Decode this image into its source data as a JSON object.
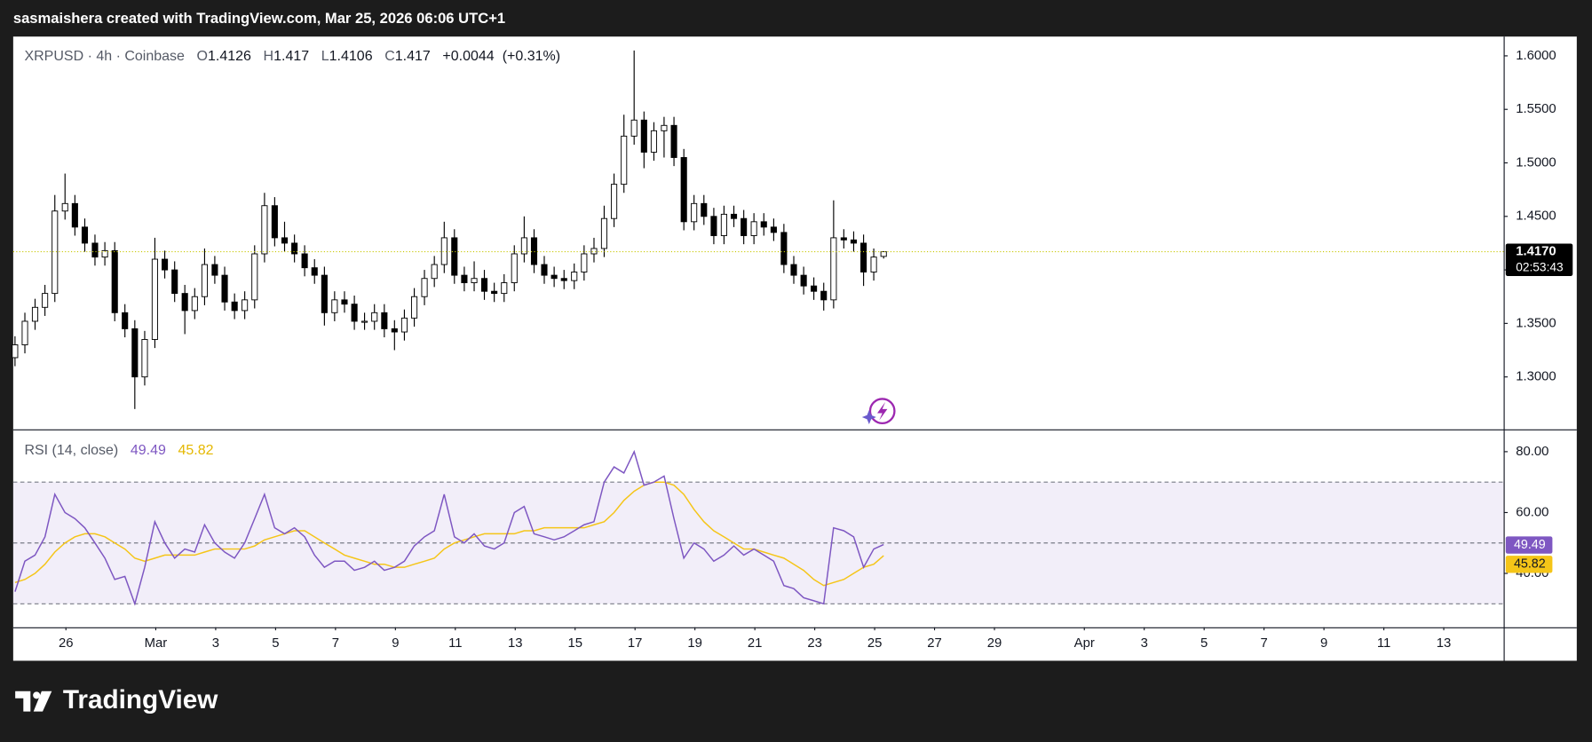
{
  "header": {
    "text": "sasmaishera created with TradingView.com, Mar 25, 2026 06:06 UTC+1"
  },
  "chart_data": {
    "type": "candlestick",
    "symbol": "XRPUSD · 4h · Coinbase",
    "legend": {
      "o_label": "O",
      "o": 1.4126,
      "h_label": "H",
      "h": 1.417,
      "l_label": "L",
      "l": 1.4106,
      "c_label": "C",
      "c": 1.417,
      "change": "+0.0044",
      "change_pct": "(+0.31%)"
    },
    "up_color": "#ffffff",
    "down_color": "#000000",
    "wick_color": "#000000",
    "xlim": [
      0.24,
      50
    ],
    "xticks": [
      {
        "value": 2,
        "label": "26"
      },
      {
        "value": 5,
        "label": "Mar"
      },
      {
        "value": 7,
        "label": "3"
      },
      {
        "value": 9,
        "label": "5"
      },
      {
        "value": 11,
        "label": "7"
      },
      {
        "value": 13,
        "label": "9"
      },
      {
        "value": 15,
        "label": "11"
      },
      {
        "value": 17,
        "label": "13"
      },
      {
        "value": 19,
        "label": "15"
      },
      {
        "value": 21,
        "label": "17"
      },
      {
        "value": 23,
        "label": "19"
      },
      {
        "value": 25,
        "label": "21"
      },
      {
        "value": 27,
        "label": "23"
      },
      {
        "value": 29,
        "label": "25"
      },
      {
        "value": 31,
        "label": "27"
      },
      {
        "value": 33,
        "label": "29"
      },
      {
        "value": 36,
        "label": "Apr"
      },
      {
        "value": 38,
        "label": "3"
      },
      {
        "value": 40,
        "label": "5"
      },
      {
        "value": 42,
        "label": "7"
      },
      {
        "value": 44,
        "label": "9"
      },
      {
        "value": 46,
        "label": "11"
      },
      {
        "value": 48,
        "label": "13"
      }
    ],
    "ylim": [
      1.251,
      1.618
    ],
    "yticks": [
      {
        "value": 1.3,
        "label": "1.3000"
      },
      {
        "value": 1.35,
        "label": "1.3500"
      },
      {
        "value": 1.4,
        "label": "1.4000"
      },
      {
        "value": 1.45,
        "label": "1.4500"
      },
      {
        "value": 1.5,
        "label": "1.5000"
      },
      {
        "value": 1.55,
        "label": "1.5500"
      },
      {
        "value": 1.6,
        "label": "1.6000"
      }
    ],
    "last_price": {
      "value": 1.417,
      "label": "1.4170"
    },
    "countdown": "02:53:43",
    "x": [
      0.3,
      0.63,
      0.97,
      1.3,
      1.63,
      1.97,
      2.3,
      2.63,
      2.97,
      3.3,
      3.63,
      3.97,
      4.3,
      4.63,
      4.97,
      5.3,
      5.63,
      5.97,
      6.3,
      6.63,
      6.97,
      7.3,
      7.63,
      7.97,
      8.3,
      8.63,
      8.97,
      9.3,
      9.63,
      9.97,
      10.3,
      10.63,
      10.97,
      11.3,
      11.63,
      11.97,
      12.3,
      12.63,
      12.97,
      13.3,
      13.63,
      13.97,
      14.3,
      14.63,
      14.97,
      15.3,
      15.63,
      15.97,
      16.3,
      16.63,
      16.97,
      17.3,
      17.63,
      17.97,
      18.3,
      18.63,
      18.97,
      19.3,
      19.63,
      19.97,
      20.3,
      20.63,
      20.97,
      21.3,
      21.63,
      21.97,
      22.3,
      22.63,
      22.97,
      23.3,
      23.63,
      23.97,
      24.3,
      24.63,
      24.97,
      25.3,
      25.63,
      25.97,
      26.3,
      26.63,
      26.97,
      27.3,
      27.63,
      27.97,
      28.3,
      28.63,
      28.97,
      29.3
    ],
    "candles": [
      [
        1.318,
        1.338,
        1.31,
        1.33
      ],
      [
        1.33,
        1.36,
        1.322,
        1.352
      ],
      [
        1.352,
        1.373,
        1.344,
        1.365
      ],
      [
        1.365,
        1.386,
        1.357,
        1.378
      ],
      [
        1.378,
        1.47,
        1.37,
        1.455
      ],
      [
        1.455,
        1.49,
        1.447,
        1.462
      ],
      [
        1.462,
        1.47,
        1.432,
        1.44
      ],
      [
        1.44,
        1.448,
        1.417,
        1.425
      ],
      [
        1.425,
        1.433,
        1.404,
        1.412
      ],
      [
        1.412,
        1.426,
        1.404,
        1.418
      ],
      [
        1.418,
        1.426,
        1.352,
        1.36
      ],
      [
        1.36,
        1.368,
        1.337,
        1.345
      ],
      [
        1.345,
        1.353,
        1.27,
        1.3
      ],
      [
        1.3,
        1.343,
        1.292,
        1.335
      ],
      [
        1.335,
        1.43,
        1.327,
        1.41
      ],
      [
        1.41,
        1.418,
        1.392,
        1.4
      ],
      [
        1.4,
        1.408,
        1.37,
        1.378
      ],
      [
        1.378,
        1.386,
        1.34,
        1.362
      ],
      [
        1.362,
        1.383,
        1.354,
        1.375
      ],
      [
        1.375,
        1.42,
        1.367,
        1.405
      ],
      [
        1.405,
        1.413,
        1.387,
        1.395
      ],
      [
        1.395,
        1.403,
        1.362,
        1.37
      ],
      [
        1.37,
        1.378,
        1.354,
        1.362
      ],
      [
        1.362,
        1.38,
        1.354,
        1.372
      ],
      [
        1.372,
        1.423,
        1.364,
        1.415
      ],
      [
        1.415,
        1.472,
        1.407,
        1.46
      ],
      [
        1.46,
        1.468,
        1.422,
        1.43
      ],
      [
        1.43,
        1.445,
        1.417,
        1.425
      ],
      [
        1.425,
        1.433,
        1.407,
        1.415
      ],
      [
        1.415,
        1.423,
        1.394,
        1.402
      ],
      [
        1.402,
        1.41,
        1.387,
        1.395
      ],
      [
        1.395,
        1.403,
        1.348,
        1.36
      ],
      [
        1.36,
        1.38,
        1.352,
        1.372
      ],
      [
        1.372,
        1.38,
        1.36,
        1.368
      ],
      [
        1.368,
        1.376,
        1.344,
        1.352
      ],
      [
        1.352,
        1.36,
        1.344,
        1.352
      ],
      [
        1.352,
        1.368,
        1.344,
        1.36
      ],
      [
        1.36,
        1.368,
        1.337,
        1.345
      ],
      [
        1.345,
        1.353,
        1.325,
        1.342
      ],
      [
        1.342,
        1.363,
        1.334,
        1.355
      ],
      [
        1.355,
        1.383,
        1.347,
        1.375
      ],
      [
        1.375,
        1.4,
        1.367,
        1.392
      ],
      [
        1.392,
        1.413,
        1.384,
        1.405
      ],
      [
        1.405,
        1.445,
        1.397,
        1.43
      ],
      [
        1.43,
        1.438,
        1.387,
        1.395
      ],
      [
        1.395,
        1.403,
        1.38,
        1.388
      ],
      [
        1.388,
        1.408,
        1.38,
        1.392
      ],
      [
        1.392,
        1.4,
        1.372,
        1.38
      ],
      [
        1.38,
        1.388,
        1.37,
        1.378
      ],
      [
        1.378,
        1.396,
        1.37,
        1.388
      ],
      [
        1.388,
        1.423,
        1.38,
        1.415
      ],
      [
        1.415,
        1.45,
        1.407,
        1.43
      ],
      [
        1.43,
        1.438,
        1.397,
        1.405
      ],
      [
        1.405,
        1.413,
        1.387,
        1.395
      ],
      [
        1.395,
        1.403,
        1.384,
        1.392
      ],
      [
        1.392,
        1.4,
        1.382,
        1.39
      ],
      [
        1.39,
        1.406,
        1.382,
        1.398
      ],
      [
        1.398,
        1.423,
        1.39,
        1.415
      ],
      [
        1.415,
        1.43,
        1.407,
        1.42
      ],
      [
        1.42,
        1.46,
        1.412,
        1.448
      ],
      [
        1.448,
        1.49,
        1.44,
        1.48
      ],
      [
        1.48,
        1.545,
        1.472,
        1.525
      ],
      [
        1.525,
        1.605,
        1.517,
        1.54
      ],
      [
        1.54,
        1.548,
        1.495,
        1.51
      ],
      [
        1.51,
        1.538,
        1.502,
        1.53
      ],
      [
        1.53,
        1.543,
        1.505,
        1.535
      ],
      [
        1.535,
        1.543,
        1.497,
        1.505
      ],
      [
        1.505,
        1.513,
        1.437,
        1.445
      ],
      [
        1.445,
        1.47,
        1.437,
        1.462
      ],
      [
        1.462,
        1.47,
        1.442,
        1.45
      ],
      [
        1.45,
        1.458,
        1.424,
        1.432
      ],
      [
        1.432,
        1.46,
        1.424,
        1.452
      ],
      [
        1.452,
        1.46,
        1.44,
        1.448
      ],
      [
        1.448,
        1.456,
        1.424,
        1.432
      ],
      [
        1.432,
        1.453,
        1.424,
        1.445
      ],
      [
        1.445,
        1.453,
        1.432,
        1.44
      ],
      [
        1.44,
        1.448,
        1.427,
        1.435
      ],
      [
        1.435,
        1.443,
        1.397,
        1.405
      ],
      [
        1.405,
        1.413,
        1.387,
        1.395
      ],
      [
        1.395,
        1.403,
        1.377,
        1.385
      ],
      [
        1.385,
        1.393,
        1.372,
        1.38
      ],
      [
        1.38,
        1.388,
        1.362,
        1.372
      ],
      [
        1.372,
        1.465,
        1.364,
        1.43
      ],
      [
        1.43,
        1.438,
        1.42,
        1.428
      ],
      [
        1.428,
        1.436,
        1.417,
        1.425
      ],
      [
        1.425,
        1.433,
        1.385,
        1.398
      ],
      [
        1.398,
        1.42,
        1.39,
        1.412
      ],
      [
        1.4126,
        1.417,
        1.4106,
        1.417
      ]
    ],
    "rsi": {
      "label": "RSI (14, close)",
      "color": "#7e57c2",
      "ma_color": "#f5c518",
      "band_color": "#7e57c2",
      "ylim": [
        22.3,
        87
      ],
      "yticks": [
        {
          "value": 40,
          "label": "40.00"
        },
        {
          "value": 60,
          "label": "60.00"
        },
        {
          "value": 80,
          "label": "80.00"
        }
      ],
      "levels": [
        30,
        50,
        70
      ],
      "last": 49.49,
      "ma_last": 45.82,
      "values": [
        34,
        44,
        46,
        52,
        66,
        60,
        58,
        55,
        50,
        45,
        38,
        39,
        30,
        42,
        57,
        50,
        45,
        48,
        47,
        56,
        50,
        47,
        45,
        50,
        58,
        66,
        55,
        53,
        55,
        52,
        46,
        42,
        44,
        44,
        41,
        42,
        44,
        41,
        42,
        44,
        49,
        52,
        54,
        66,
        52,
        50,
        53,
        49,
        48,
        50,
        60,
        62,
        53,
        52,
        51,
        52,
        54,
        56,
        57,
        70,
        75,
        73,
        80,
        69,
        70,
        72,
        58,
        45,
        50,
        48,
        44,
        46,
        49,
        46,
        48,
        46,
        44,
        36,
        35,
        32,
        31,
        30,
        55,
        54,
        52,
        42,
        48,
        49.49
      ],
      "ma_values": [
        37,
        38,
        40,
        43,
        47,
        50,
        52,
        53,
        53,
        52,
        50,
        48,
        45,
        44,
        45,
        46,
        46,
        46,
        46,
        47,
        48,
        48,
        48,
        48,
        49,
        51,
        52,
        53,
        54,
        54,
        52,
        50,
        48,
        46,
        45,
        44,
        43,
        43,
        42,
        42,
        43,
        44,
        45,
        48,
        50,
        51,
        52,
        53,
        53,
        53,
        53,
        54,
        54,
        55,
        55,
        55,
        55,
        55,
        56,
        57,
        60,
        64,
        67,
        69,
        70,
        70,
        69,
        66,
        61,
        57,
        54,
        52,
        50,
        48,
        48,
        47,
        46,
        45,
        43,
        41,
        38,
        36,
        37,
        38,
        40,
        42,
        43,
        45.82
      ]
    }
  },
  "footer": {
    "brand": "TradingView"
  }
}
